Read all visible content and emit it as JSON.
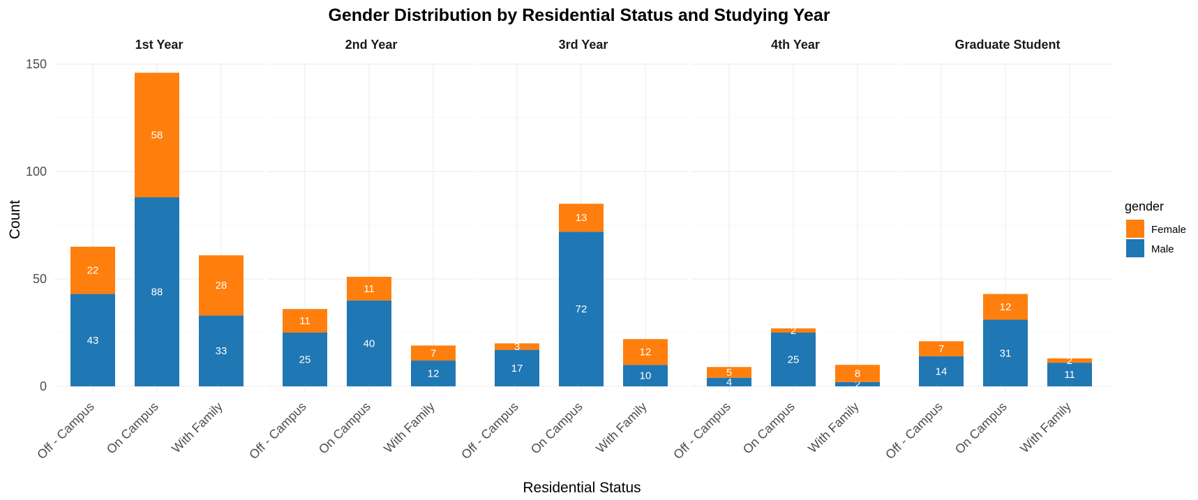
{
  "chart_data": {
    "type": "bar",
    "stacked": true,
    "faceted": true,
    "title": "Gender Distribution by Residential Status and Studying Year",
    "xlabel": "Residential Status",
    "ylabel": "Count",
    "ylim": [
      0,
      150
    ],
    "yticks": [
      "0",
      "50",
      "100",
      "150"
    ],
    "categories": [
      "Off - Campus",
      "On Campus",
      "With Family"
    ],
    "legend": {
      "title": "gender",
      "position": "right",
      "items": [
        {
          "name": "Female",
          "color": "#ff7f0e"
        },
        {
          "name": "Male",
          "color": "#1f77b4"
        }
      ]
    },
    "grid": true,
    "panels": [
      {
        "name": "1st Year",
        "series": [
          {
            "name": "Male",
            "values": [
              43,
              88,
              33
            ]
          },
          {
            "name": "Female",
            "values": [
              22,
              58,
              28
            ]
          }
        ]
      },
      {
        "name": "2nd Year",
        "series": [
          {
            "name": "Male",
            "values": [
              25,
              40,
              12
            ]
          },
          {
            "name": "Female",
            "values": [
              11,
              11,
              7
            ]
          }
        ]
      },
      {
        "name": "3rd Year",
        "series": [
          {
            "name": "Male",
            "values": [
              17,
              72,
              10
            ]
          },
          {
            "name": "Female",
            "values": [
              3,
              13,
              12
            ]
          }
        ]
      },
      {
        "name": "4th Year",
        "series": [
          {
            "name": "Male",
            "values": [
              4,
              25,
              2
            ]
          },
          {
            "name": "Female",
            "values": [
              5,
              2,
              8
            ]
          }
        ]
      },
      {
        "name": "Graduate Student",
        "series": [
          {
            "name": "Male",
            "values": [
              14,
              31,
              11
            ]
          },
          {
            "name": "Female",
            "values": [
              7,
              12,
              2
            ]
          }
        ]
      }
    ]
  }
}
